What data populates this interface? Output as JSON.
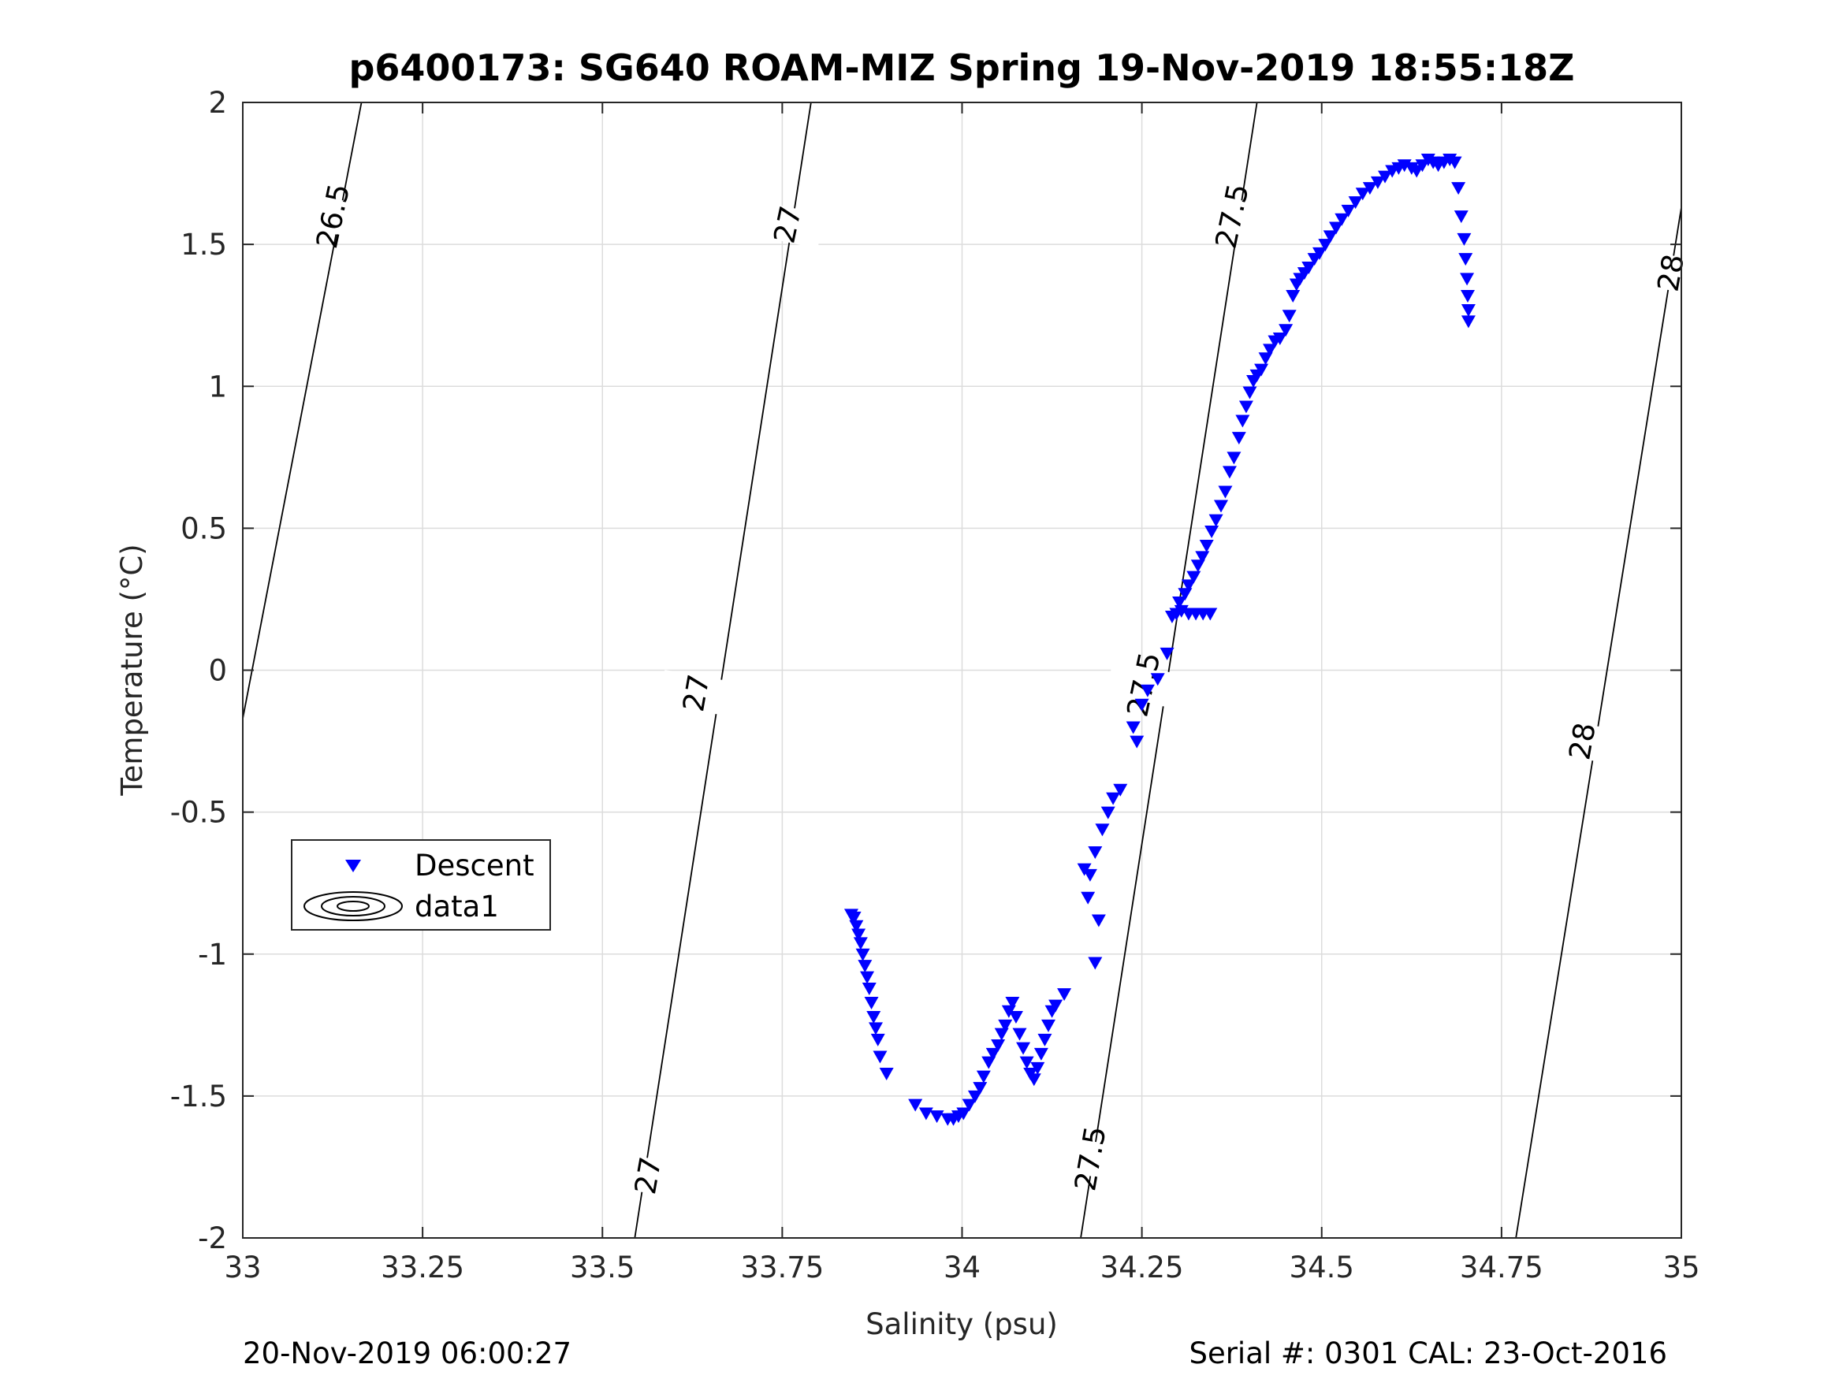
{
  "chart_data": {
    "type": "scatter",
    "title": "p6400173: SG640 ROAM-MIZ Spring 19-Nov-2019 18:55:18Z",
    "xlabel": "Salinity (psu)",
    "ylabel": "Temperature (°C)",
    "xlim": [
      33,
      35
    ],
    "ylim": [
      -2,
      2
    ],
    "x_ticks": [
      "33",
      "33.25",
      "33.5",
      "33.75",
      "34",
      "34.25",
      "34.5",
      "34.75",
      "35"
    ],
    "y_ticks": [
      "2",
      "1.5",
      "1",
      "0.5",
      "0",
      "-0.5",
      "-1",
      "-1.5",
      "-2"
    ],
    "grid": true,
    "legend": {
      "placement": "left-middle",
      "entries": [
        "Descent",
        "data1"
      ]
    },
    "series": [
      {
        "name": "Descent",
        "marker": "triangle-down",
        "color": "#0000ff",
        "points": [
          [
            33.846,
            -0.86
          ],
          [
            33.85,
            -0.87
          ],
          [
            33.853,
            -0.9
          ],
          [
            33.856,
            -0.93
          ],
          [
            33.859,
            -0.96
          ],
          [
            33.862,
            -1.0
          ],
          [
            33.865,
            -1.04
          ],
          [
            33.868,
            -1.08
          ],
          [
            33.871,
            -1.12
          ],
          [
            33.874,
            -1.17
          ],
          [
            33.877,
            -1.22
          ],
          [
            33.88,
            -1.26
          ],
          [
            33.883,
            -1.3
          ],
          [
            33.886,
            -1.36
          ],
          [
            33.895,
            -1.42
          ],
          [
            33.935,
            -1.53
          ],
          [
            33.95,
            -1.56
          ],
          [
            33.965,
            -1.57
          ],
          [
            33.98,
            -1.58
          ],
          [
            33.988,
            -1.58
          ],
          [
            33.995,
            -1.57
          ],
          [
            34.002,
            -1.56
          ],
          [
            34.01,
            -1.53
          ],
          [
            34.018,
            -1.5
          ],
          [
            34.025,
            -1.47
          ],
          [
            34.03,
            -1.43
          ],
          [
            34.037,
            -1.38
          ],
          [
            34.043,
            -1.35
          ],
          [
            34.05,
            -1.32
          ],
          [
            34.055,
            -1.28
          ],
          [
            34.06,
            -1.25
          ],
          [
            34.065,
            -1.2
          ],
          [
            34.07,
            -1.17
          ],
          [
            34.075,
            -1.22
          ],
          [
            34.08,
            -1.28
          ],
          [
            34.085,
            -1.33
          ],
          [
            34.09,
            -1.38
          ],
          [
            34.095,
            -1.42
          ],
          [
            34.1,
            -1.44
          ],
          [
            34.105,
            -1.4
          ],
          [
            34.11,
            -1.35
          ],
          [
            34.115,
            -1.3
          ],
          [
            34.12,
            -1.25
          ],
          [
            34.125,
            -1.2
          ],
          [
            34.13,
            -1.18
          ],
          [
            34.142,
            -1.14
          ],
          [
            34.185,
            -1.03
          ],
          [
            34.19,
            -0.88
          ],
          [
            34.175,
            -0.8
          ],
          [
            34.17,
            -0.7
          ],
          [
            34.178,
            -0.72
          ],
          [
            34.185,
            -0.64
          ],
          [
            34.195,
            -0.56
          ],
          [
            34.203,
            -0.5
          ],
          [
            34.21,
            -0.45
          ],
          [
            34.22,
            -0.42
          ],
          [
            34.243,
            -0.25
          ],
          [
            34.238,
            -0.2
          ],
          [
            34.25,
            -0.12
          ],
          [
            34.258,
            -0.07
          ],
          [
            34.272,
            -0.03
          ],
          [
            34.285,
            0.06
          ],
          [
            34.292,
            0.19
          ],
          [
            34.298,
            0.2
          ],
          [
            34.305,
            0.21
          ],
          [
            34.315,
            0.2
          ],
          [
            34.325,
            0.2
          ],
          [
            34.335,
            0.2
          ],
          [
            34.345,
            0.2
          ],
          [
            34.302,
            0.24
          ],
          [
            34.31,
            0.27
          ],
          [
            34.315,
            0.3
          ],
          [
            34.322,
            0.33
          ],
          [
            34.328,
            0.37
          ],
          [
            34.334,
            0.4
          ],
          [
            34.34,
            0.44
          ],
          [
            34.347,
            0.49
          ],
          [
            34.353,
            0.53
          ],
          [
            34.36,
            0.58
          ],
          [
            34.366,
            0.63
          ],
          [
            34.372,
            0.7
          ],
          [
            34.378,
            0.75
          ],
          [
            34.385,
            0.82
          ],
          [
            34.39,
            0.88
          ],
          [
            34.395,
            0.93
          ],
          [
            34.4,
            0.98
          ],
          [
            34.405,
            1.02
          ],
          [
            34.41,
            1.04
          ],
          [
            34.416,
            1.06
          ],
          [
            34.422,
            1.1
          ],
          [
            34.428,
            1.13
          ],
          [
            34.435,
            1.16
          ],
          [
            34.442,
            1.17
          ],
          [
            34.45,
            1.2
          ],
          [
            34.455,
            1.25
          ],
          [
            34.46,
            1.32
          ],
          [
            34.465,
            1.36
          ],
          [
            34.47,
            1.38
          ],
          [
            34.476,
            1.4
          ],
          [
            34.482,
            1.42
          ],
          [
            34.49,
            1.45
          ],
          [
            34.497,
            1.47
          ],
          [
            34.505,
            1.5
          ],
          [
            34.512,
            1.53
          ],
          [
            34.52,
            1.56
          ],
          [
            34.528,
            1.59
          ],
          [
            34.537,
            1.62
          ],
          [
            34.547,
            1.65
          ],
          [
            34.557,
            1.68
          ],
          [
            34.567,
            1.7
          ],
          [
            34.578,
            1.72
          ],
          [
            34.588,
            1.74
          ],
          [
            34.598,
            1.76
          ],
          [
            34.607,
            1.77
          ],
          [
            34.615,
            1.78
          ],
          [
            34.625,
            1.77
          ],
          [
            34.632,
            1.76
          ],
          [
            34.64,
            1.78
          ],
          [
            34.648,
            1.8
          ],
          [
            34.655,
            1.79
          ],
          [
            34.662,
            1.78
          ],
          [
            34.67,
            1.79
          ],
          [
            34.678,
            1.8
          ],
          [
            34.685,
            1.79
          ],
          [
            34.69,
            1.7
          ],
          [
            34.694,
            1.6
          ],
          [
            34.698,
            1.52
          ],
          [
            34.7,
            1.45
          ],
          [
            34.702,
            1.38
          ],
          [
            34.703,
            1.32
          ],
          [
            34.704,
            1.27
          ],
          [
            34.704,
            1.23
          ]
        ]
      }
    ],
    "contour_labels": [
      "26.5",
      "27",
      "27",
      "27",
      "27.5",
      "27.5",
      "27.5",
      "28",
      "28"
    ],
    "footer_left": "20-Nov-2019 06:00:27",
    "footer_right": "Serial #: 0301  CAL: 23-Oct-2016"
  }
}
